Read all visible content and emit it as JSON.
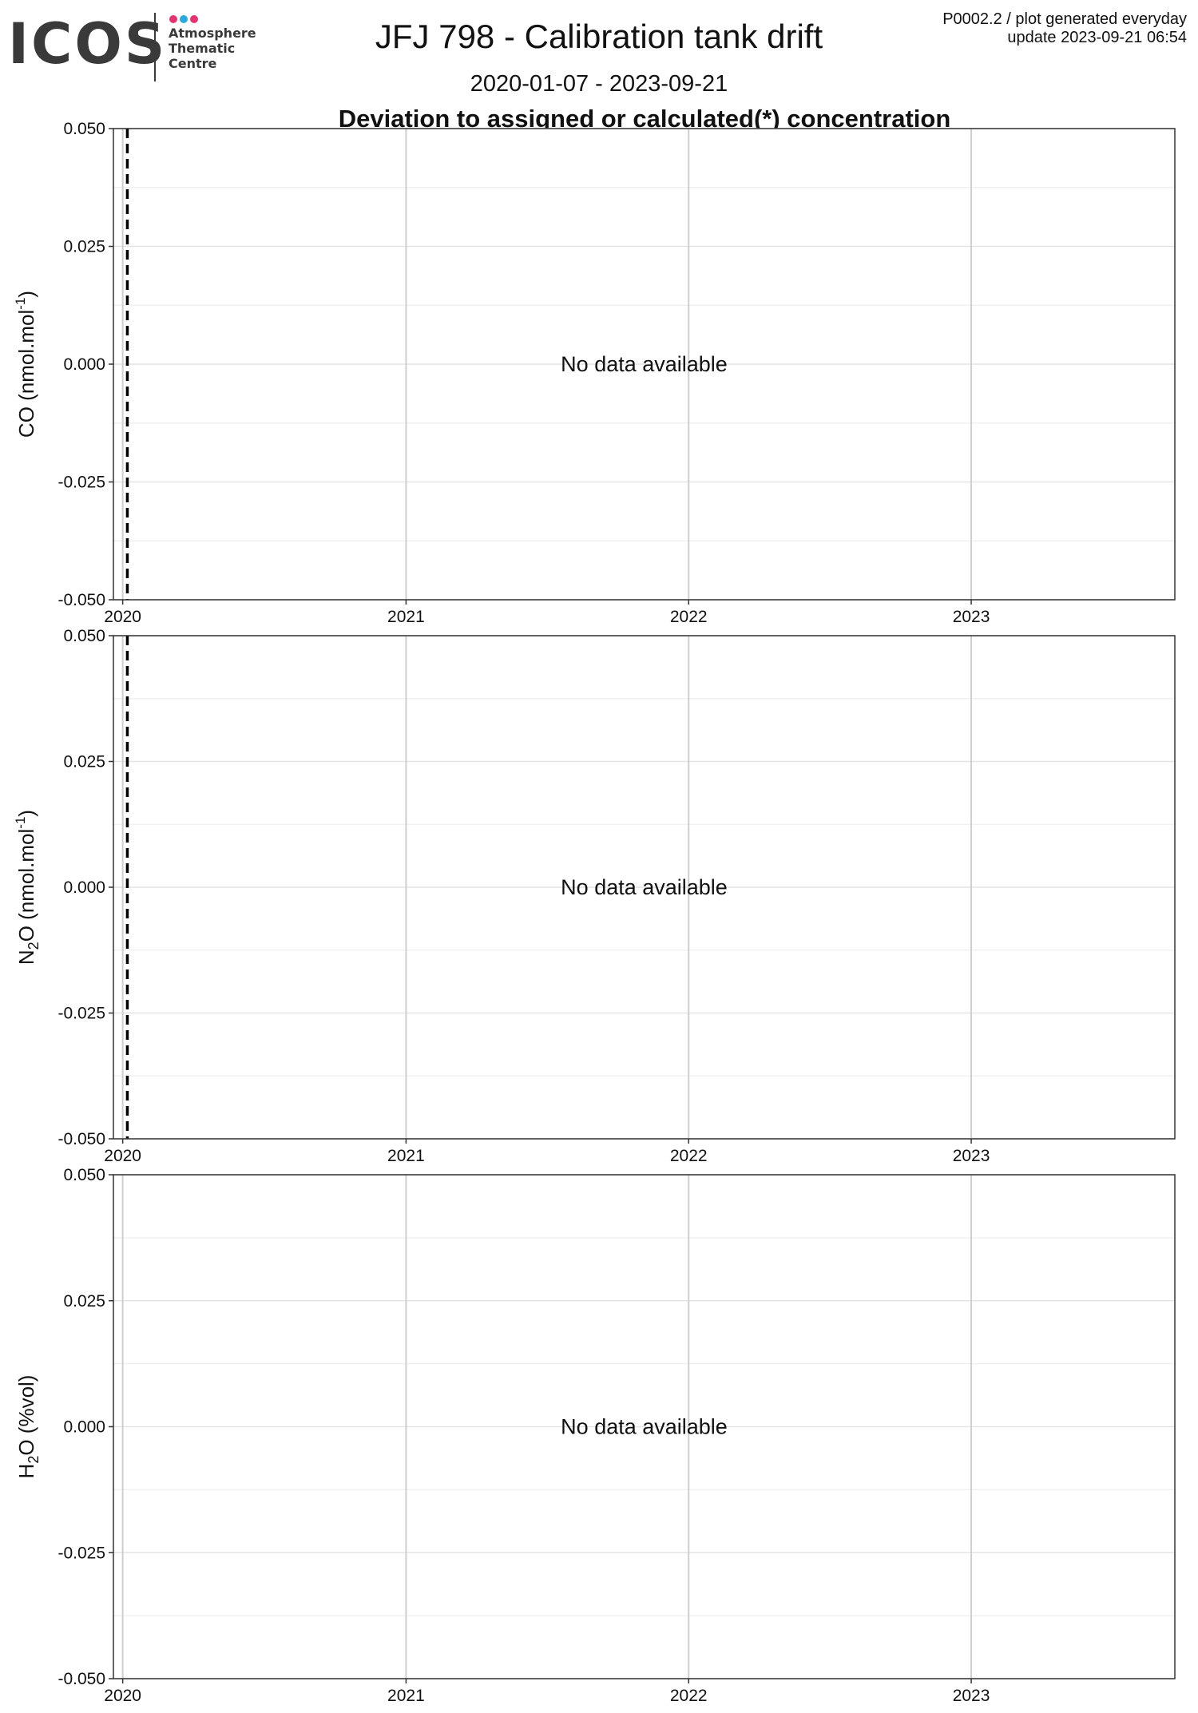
{
  "logo": {
    "wordmark": "ICOS",
    "lines": [
      "Atmosphere",
      "Thematic",
      "Centre"
    ],
    "dot_colors": [
      "#e6336e",
      "#2aa9e0",
      "#e6336e"
    ]
  },
  "header": {
    "title": "JFJ 798 - Calibration tank drift",
    "date_range": "2020-01-07 - 2023-09-21",
    "heading": "Deviation to assigned or calculated(*) concentration",
    "update_line1": "P0002.2 / plot generated everyday",
    "update_line2": "update  2023-09-21 06:54"
  },
  "chart_data": [
    {
      "type": "line",
      "ylabel": "CO (nmol.mol-1)",
      "species": "CO",
      "unit": "(nmol.mol",
      "unit_sup": "-1",
      "ylim": [
        -0.05,
        0.05
      ],
      "xlim": [
        "2019-12-20",
        "2023-09-21"
      ],
      "x_ticks": [
        "2020",
        "2021",
        "2022",
        "2023"
      ],
      "y_ticks": [
        "-0.050",
        "-0.025",
        "0.000",
        "0.025",
        "0.050"
      ],
      "vline_date": "2020-01-07",
      "series": [],
      "message": "No data available",
      "grid": true
    },
    {
      "type": "line",
      "ylabel": "N2O (nmol.mol-1)",
      "species": "N",
      "species_sub": "2",
      "species_end": "O",
      "unit": "(nmol.mol",
      "unit_sup": "-1",
      "ylim": [
        -0.05,
        0.05
      ],
      "xlim": [
        "2019-12-20",
        "2023-09-21"
      ],
      "x_ticks": [
        "2020",
        "2021",
        "2022",
        "2023"
      ],
      "y_ticks": [
        "-0.050",
        "-0.025",
        "0.000",
        "0.025",
        "0.050"
      ],
      "vline_date": "2020-01-07",
      "series": [],
      "message": "No data available",
      "grid": true
    },
    {
      "type": "line",
      "ylabel": "H2O (%vol)",
      "species": "H",
      "species_sub": "2",
      "species_end": "O",
      "unit": "(%vol)",
      "ylim": [
        -0.05,
        0.05
      ],
      "xlim": [
        "2019-12-20",
        "2023-09-21"
      ],
      "x_ticks": [
        "2020",
        "2021",
        "2022",
        "2023"
      ],
      "y_ticks": [
        "-0.050",
        "-0.025",
        "0.000",
        "0.025",
        "0.050"
      ],
      "series": [],
      "message": "No data available",
      "grid": true
    }
  ]
}
